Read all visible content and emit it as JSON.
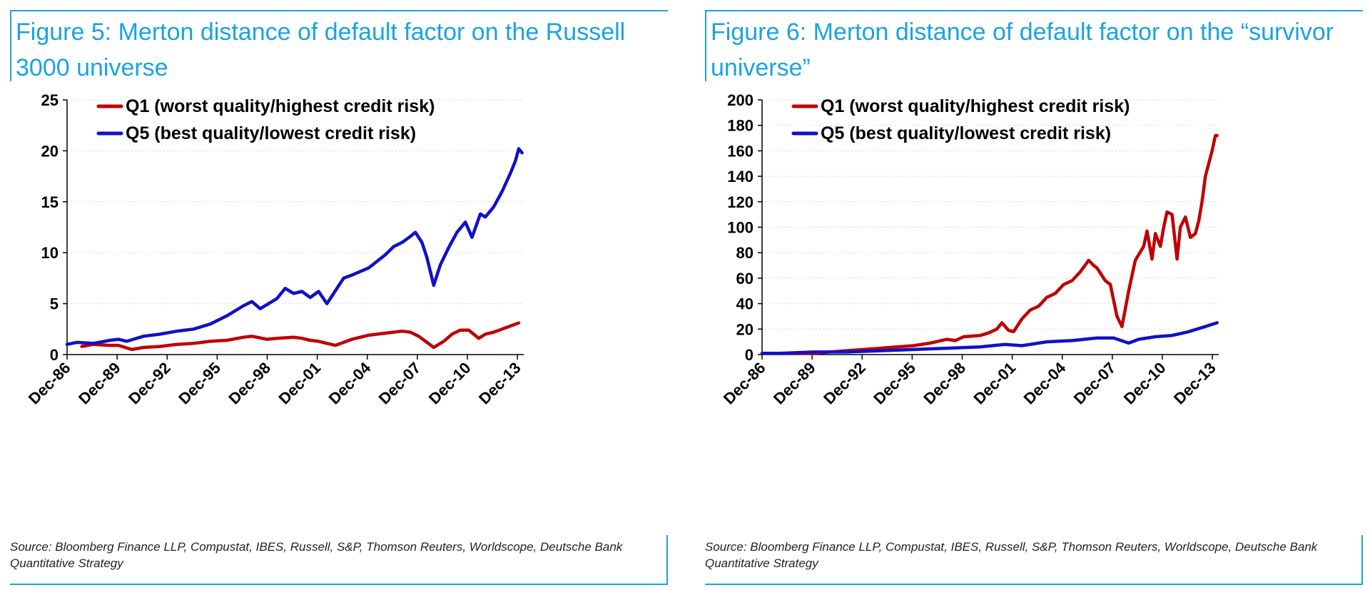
{
  "figures": [
    {
      "title": "Figure 5: Merton distance of default factor on the Russell 3000 universe",
      "source": "Source: Bloomberg Finance LLP, Compustat, IBES, Russell, S&P, Thomson Reuters, Worldscope, Deutsche Bank Quantitative Strategy"
    },
    {
      "title": "Figure 6: Merton distance of default factor on the “survivor universe”",
      "source": "Source: Bloomberg Finance LLP, Compustat, IBES, Russell, S&P, Thomson Reuters, Worldscope, Deutsche Bank Quantitative Strategy"
    }
  ],
  "colors": {
    "accent": "#1aa3e0",
    "q1": "#c00000",
    "q5": "#1010c8",
    "grid": "#d9d9d9"
  },
  "chart_data": [
    {
      "type": "line",
      "title": "Figure 5: Merton distance of default factor on the Russell 3000 universe",
      "xlabel": "",
      "ylabel": "",
      "ylim": [
        0,
        25
      ],
      "yticks": [
        "0",
        "5",
        "10",
        "15",
        "20",
        "25"
      ],
      "xticks": [
        "Dec-86",
        "Dec-89",
        "Dec-92",
        "Dec-95",
        "Dec-98",
        "Dec-01",
        "Dec-04",
        "Dec-07",
        "Dec-10",
        "Dec-13"
      ],
      "xlim": [
        1986.92,
        2014.3
      ],
      "grid": true,
      "legend_position": "top-left",
      "series": [
        {
          "name": "Q1 (worst quality/highest credit risk)",
          "color": "#c00000",
          "x": [
            1987.8,
            1988.5,
            1989.5,
            1990.0,
            1990.8,
            1991.5,
            1992.5,
            1993.5,
            1994.5,
            1995.5,
            1996.5,
            1997.5,
            1998.0,
            1998.9,
            1999.5,
            2000.5,
            2001.0,
            2001.5,
            2002.0,
            2002.5,
            2003.0,
            2004.0,
            2005.0,
            2006.0,
            2007.0,
            2007.5,
            2008.0,
            2008.5,
            2008.9,
            2009.5,
            2010.0,
            2010.5,
            2011.0,
            2011.6,
            2012.0,
            2012.5,
            2013.0,
            2013.5,
            2014.0
          ],
          "y": [
            0.8,
            1.0,
            0.9,
            0.9,
            0.5,
            0.7,
            0.8,
            1.0,
            1.1,
            1.3,
            1.4,
            1.7,
            1.8,
            1.5,
            1.6,
            1.7,
            1.6,
            1.4,
            1.3,
            1.1,
            0.9,
            1.5,
            1.9,
            2.1,
            2.3,
            2.2,
            1.8,
            1.2,
            0.7,
            1.3,
            2.0,
            2.4,
            2.4,
            1.6,
            2.0,
            2.2,
            2.5,
            2.8,
            3.1
          ]
        },
        {
          "name": "Q5 (best quality/lowest credit risk)",
          "color": "#1010c8",
          "x": [
            1986.92,
            1987.5,
            1988.5,
            1989.5,
            1990.0,
            1990.5,
            1991.5,
            1992.5,
            1993.5,
            1994.5,
            1995.5,
            1996.5,
            1997.5,
            1998.0,
            1998.5,
            1999.5,
            2000.0,
            2000.5,
            2001.0,
            2001.5,
            2002.0,
            2002.5,
            2003.5,
            2004.0,
            2005.0,
            2006.0,
            2006.5,
            2007.0,
            2007.5,
            2007.8,
            2008.2,
            2008.5,
            2008.9,
            2009.3,
            2009.8,
            2010.3,
            2010.8,
            2011.2,
            2011.7,
            2012.0,
            2012.5,
            2013.0,
            2013.5,
            2013.8,
            2014.0,
            2014.2
          ],
          "y": [
            1.0,
            1.2,
            1.1,
            1.4,
            1.5,
            1.3,
            1.8,
            2.0,
            2.3,
            2.5,
            3.0,
            3.8,
            4.8,
            5.2,
            4.5,
            5.5,
            6.5,
            6.0,
            6.2,
            5.6,
            6.2,
            5.0,
            7.5,
            7.8,
            8.5,
            9.8,
            10.6,
            11.0,
            11.6,
            12.0,
            11.0,
            9.5,
            6.8,
            8.8,
            10.5,
            12.0,
            13.0,
            11.5,
            13.8,
            13.5,
            14.5,
            16.0,
            17.8,
            19.0,
            20.2,
            19.8
          ]
        }
      ]
    },
    {
      "type": "line",
      "title": "Figure 6: Merton distance of default factor on the “survivor universe”",
      "xlabel": "",
      "ylabel": "",
      "ylim": [
        0,
        200
      ],
      "yticks": [
        "0",
        "20",
        "40",
        "60",
        "80",
        "100",
        "120",
        "140",
        "160",
        "180",
        "200"
      ],
      "xticks": [
        "Dec-86",
        "Dec-89",
        "Dec-92",
        "Dec-95",
        "Dec-98",
        "Dec-01",
        "Dec-04",
        "Dec-07",
        "Dec-10",
        "Dec-13"
      ],
      "xlim": [
        1986.92,
        2014.3
      ],
      "grid": true,
      "legend_position": "top-left",
      "series": [
        {
          "name": "Q1 (worst quality/highest credit risk)",
          "color": "#c00000",
          "x": [
            1986.92,
            1988.0,
            1989.0,
            1990.0,
            1991.0,
            1992.0,
            1993.0,
            1994.0,
            1995.0,
            1996.0,
            1997.0,
            1998.0,
            1998.5,
            1999.0,
            2000.0,
            2000.5,
            2001.0,
            2001.3,
            2001.7,
            2002.0,
            2002.5,
            2003.0,
            2003.5,
            2004.0,
            2004.5,
            2005.0,
            2005.5,
            2006.0,
            2006.5,
            2006.8,
            2007.0,
            2007.5,
            2007.8,
            2008.2,
            2008.5,
            2008.9,
            2009.3,
            2009.8,
            2010.0,
            2010.3,
            2010.5,
            2010.8,
            2011.0,
            2011.2,
            2011.5,
            2011.8,
            2012.0,
            2012.3,
            2012.6,
            2012.9,
            2013.1,
            2013.3,
            2013.5,
            2013.7,
            2013.9,
            2014.1,
            2014.2
          ],
          "y": [
            1,
            1,
            1,
            1,
            2,
            3,
            4,
            5,
            6,
            7,
            9,
            12,
            11,
            14,
            15,
            17,
            20,
            25,
            19,
            18,
            28,
            35,
            38,
            45,
            48,
            55,
            58,
            65,
            74,
            70,
            68,
            58,
            55,
            30,
            22,
            50,
            74,
            85,
            97,
            75,
            95,
            85,
            100,
            112,
            110,
            75,
            100,
            108,
            92,
            95,
            105,
            120,
            140,
            150,
            160,
            172,
            172
          ]
        },
        {
          "name": "Q5 (best quality/lowest credit risk)",
          "color": "#1010c8",
          "x": [
            1986.92,
            1988.0,
            1990.0,
            1992.0,
            1994.0,
            1996.0,
            1998.0,
            2000.0,
            2001.5,
            2002.5,
            2004.0,
            2005.5,
            2007.0,
            2008.0,
            2008.9,
            2009.5,
            2010.5,
            2011.5,
            2012.5,
            2013.5,
            2014.2
          ],
          "y": [
            1,
            1,
            2,
            2,
            3,
            4,
            5,
            6,
            8,
            7,
            10,
            11,
            13,
            13,
            9,
            12,
            14,
            15,
            18,
            22,
            25
          ]
        }
      ]
    }
  ]
}
